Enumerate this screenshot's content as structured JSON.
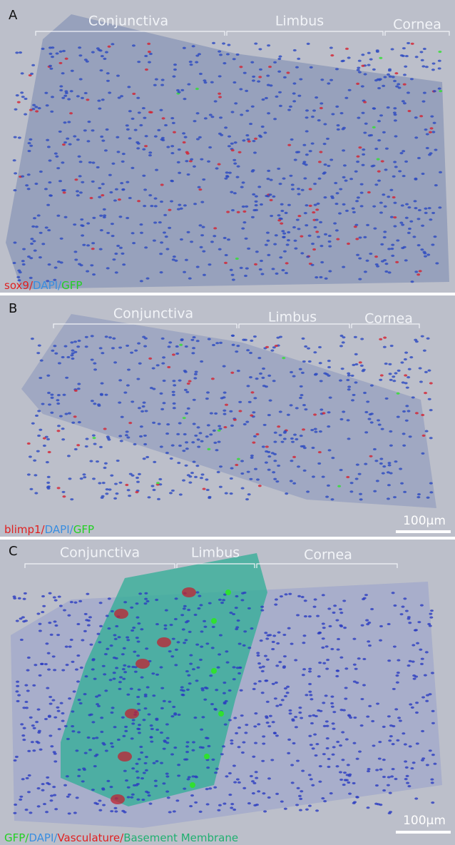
{
  "panels": [
    {
      "label": "A",
      "regions": [
        "Conjunctiva",
        "Limbus",
        "Cornea"
      ],
      "legend": [
        {
          "text": "sox9",
          "color": "#e02020"
        },
        {
          "text": "/",
          "color": "#e02020"
        },
        {
          "text": "DAPI",
          "color": "#3a8ee0"
        },
        {
          "text": "/",
          "color": "#3a8ee0"
        },
        {
          "text": "GFP",
          "color": "#22d022"
        }
      ]
    },
    {
      "label": "B",
      "regions": [
        "Conjunctiva",
        "Limbus",
        "Cornea"
      ],
      "legend": [
        {
          "text": "blimp1",
          "color": "#e02020"
        },
        {
          "text": "/",
          "color": "#e02020"
        },
        {
          "text": "DAPI",
          "color": "#3a8ee0"
        },
        {
          "text": "/",
          "color": "#3a8ee0"
        },
        {
          "text": "GFP",
          "color": "#22d022"
        }
      ],
      "scale_bar": "100µm"
    },
    {
      "label": "C",
      "regions": [
        "Conjunctiva",
        "Limbus",
        "Cornea"
      ],
      "legend": [
        {
          "text": "GFP",
          "color": "#22d022"
        },
        {
          "text": "/",
          "color": "#22d022"
        },
        {
          "text": "DAPI",
          "color": "#3a8ee0"
        },
        {
          "text": "/",
          "color": "#3a8ee0"
        },
        {
          "text": "Vasculature",
          "color": "#e02020"
        },
        {
          "text": "/",
          "color": "#e02020"
        },
        {
          "text": "Basement Membrane",
          "color": "#1fb070"
        }
      ],
      "scale_bar": "100µm"
    }
  ]
}
